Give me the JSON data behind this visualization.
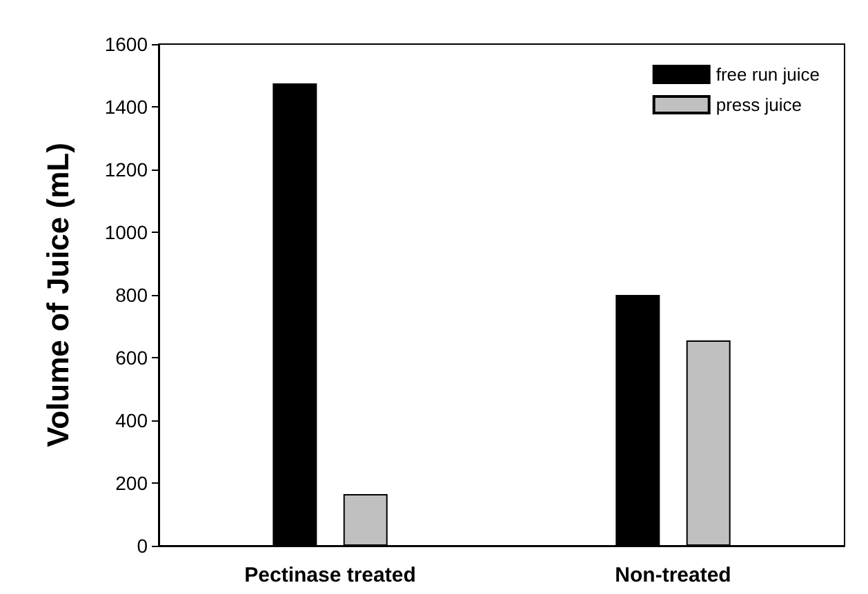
{
  "chart_data": {
    "type": "bar",
    "ylabel": "Volume of Juice (mL)",
    "categories": [
      "Pectinase treated",
      "Non-treated"
    ],
    "series": [
      {
        "name": "free run juice",
        "color": "#000000",
        "values": [
          1475,
          800
        ]
      },
      {
        "name": "press juice",
        "color": "#c0c0c0",
        "values": [
          165,
          655
        ]
      }
    ],
    "ylim": [
      0,
      1600
    ],
    "yticks": [
      0,
      200,
      400,
      600,
      800,
      1000,
      1200,
      1400,
      1600
    ],
    "grid": false,
    "legend": "top right"
  }
}
